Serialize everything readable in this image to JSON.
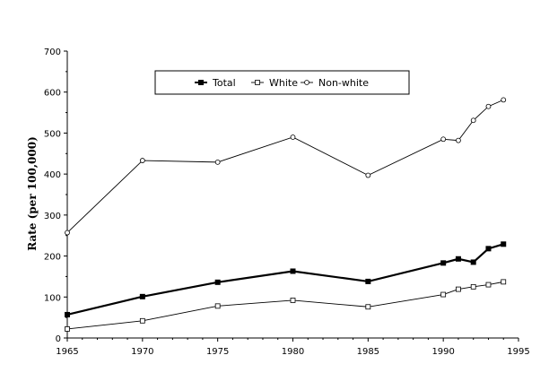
{
  "chart_data": {
    "type": "line",
    "title": "",
    "xlabel": "",
    "ylabel": "Rate (per 100,000)",
    "xlim": [
      1965,
      1995
    ],
    "ylim": [
      0,
      700
    ],
    "x_ticks": [
      1965,
      1970,
      1975,
      1980,
      1985,
      1990,
      1995
    ],
    "y_ticks": [
      0,
      100,
      200,
      300,
      400,
      500,
      600,
      700
    ],
    "grid": false,
    "legend_position": "top-center",
    "series": [
      {
        "name": "Total",
        "marker": "filled-square",
        "color": "#000000",
        "x": [
          1965,
          1970,
          1975,
          1980,
          1985,
          1990,
          1991,
          1992,
          1993,
          1994
        ],
        "y": [
          57,
          101,
          136,
          163,
          138,
          183,
          193,
          185,
          218,
          229
        ]
      },
      {
        "name": "White",
        "marker": "open-square",
        "color": "#000000",
        "x": [
          1965,
          1970,
          1975,
          1980,
          1985,
          1990,
          1991,
          1992,
          1993,
          1994
        ],
        "y": [
          22,
          42,
          78,
          92,
          76,
          106,
          119,
          125,
          130,
          137
        ]
      },
      {
        "name": "Non-white",
        "marker": "open-circle",
        "color": "#000000",
        "x": [
          1965,
          1970,
          1975,
          1980,
          1985,
          1990,
          1991,
          1992,
          1993,
          1994
        ],
        "y": [
          257,
          433,
          429,
          490,
          397,
          485,
          482,
          531,
          565,
          581
        ]
      }
    ]
  }
}
